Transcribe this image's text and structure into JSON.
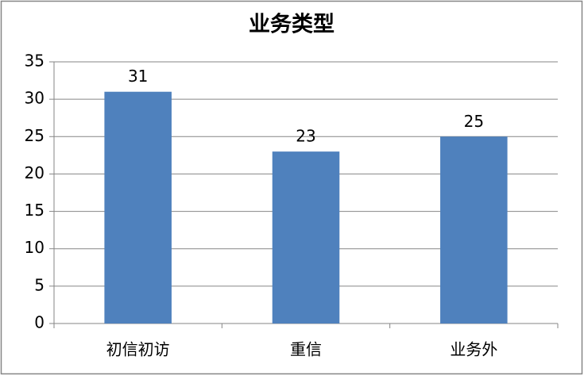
{
  "chart_data": {
    "type": "bar",
    "title": "业务类型",
    "categories": [
      "初信初访",
      "重信",
      "业务外"
    ],
    "values": [
      31,
      23,
      25
    ],
    "color": "#4f81bd",
    "ylim": [
      0,
      35
    ],
    "yticks": [
      0,
      5,
      10,
      15,
      20,
      25,
      30,
      35
    ],
    "grid": true,
    "data_labels": true
  }
}
